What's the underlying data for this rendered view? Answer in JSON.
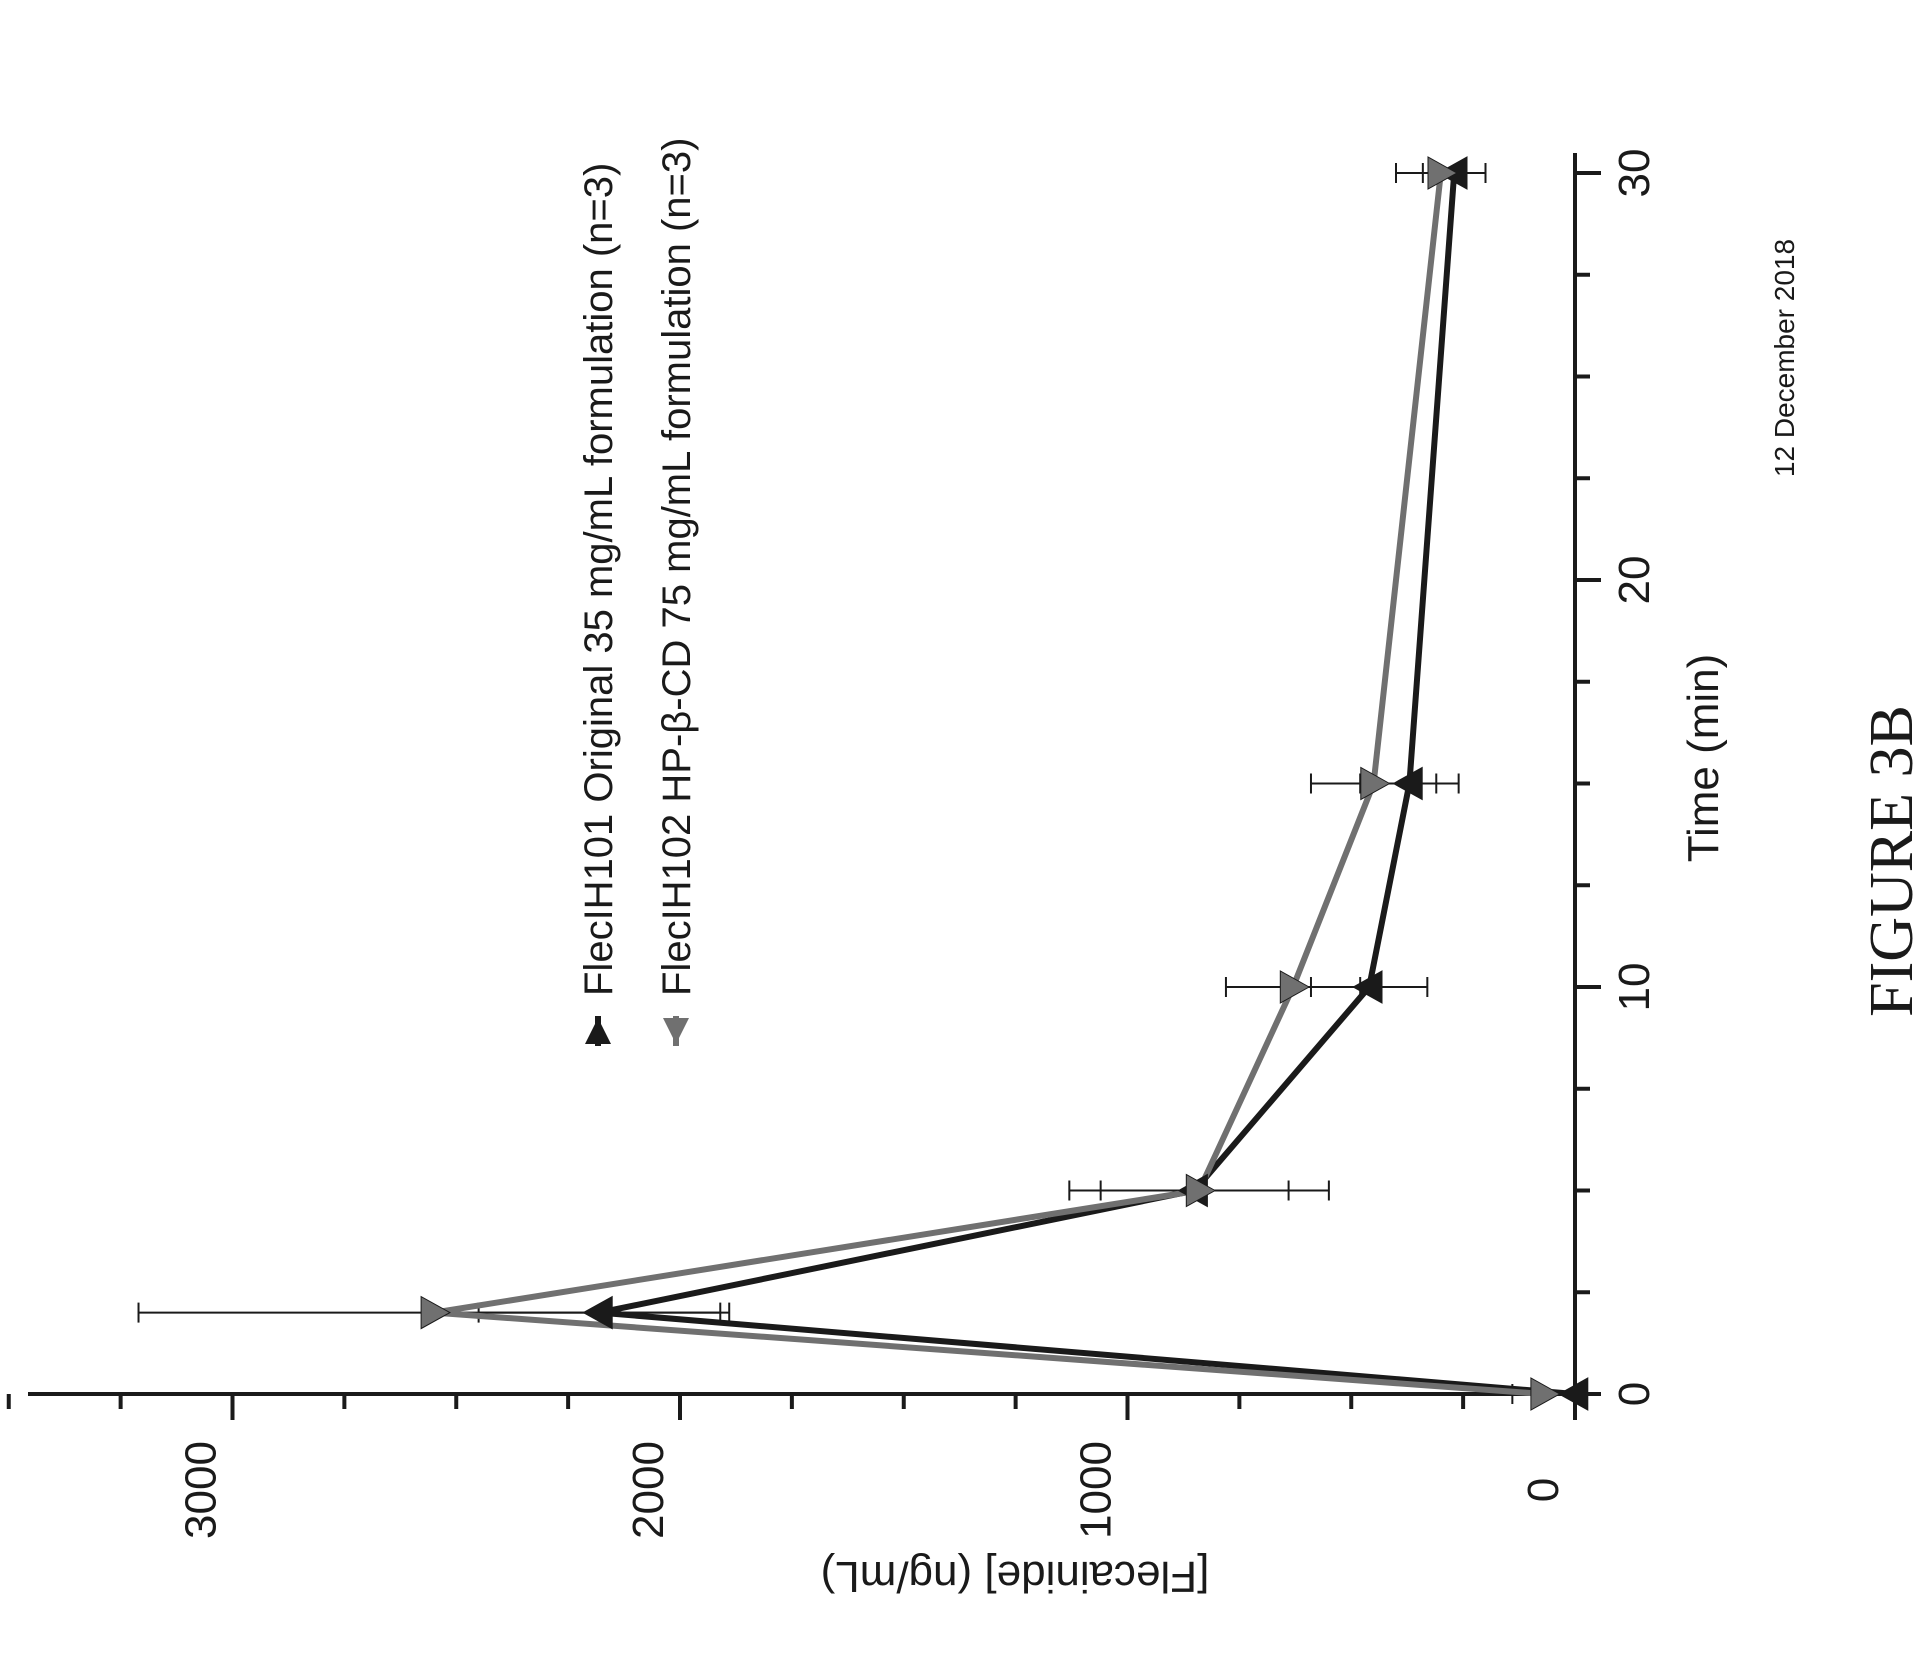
{
  "figure_label": "FIGURE 3B",
  "date_note": "12 December 2018",
  "colors": {
    "series_1": "#1a1a1a",
    "series_2": "#707070",
    "axis": "#1a1a1a"
  },
  "chart_data": {
    "type": "line",
    "orientation": "rotated 90 degrees counter-clockwise",
    "xlabel": "Time (min)",
    "ylabel": "[Flecainide] (ng/mL)",
    "xlim": [
      0,
      31
    ],
    "ylim": [
      0,
      3500
    ],
    "x_ticks": [
      0,
      10,
      20,
      30
    ],
    "y_ticks": [
      0,
      1000,
      2000,
      3000
    ],
    "x_minor_tick_step": 2.5,
    "y_minor_tick_step": 250,
    "grid": false,
    "legend_position": "top",
    "series": [
      {
        "name": "FlecIH101 Original 35 mg/mL formulation (n=3)",
        "marker": "triangle-up",
        "color_key": "series_1",
        "points": [
          {
            "x": 0,
            "y": 0,
            "err": 0
          },
          {
            "x": 2,
            "y": 2180,
            "err": 270
          },
          {
            "x": 5,
            "y": 850,
            "err": 210
          },
          {
            "x": 10,
            "y": 460,
            "err": 130
          },
          {
            "x": 15,
            "y": 370,
            "err": 110
          },
          {
            "x": 30,
            "y": 270,
            "err": 70
          }
        ]
      },
      {
        "name": "FlecIH102 HP-β-CD 75 mg/mL formulation (n=3)",
        "marker": "triangle-down",
        "color_key": "series_2",
        "points": [
          {
            "x": 0,
            "y": 70,
            "err": 70
          },
          {
            "x": 2,
            "y": 2550,
            "err": 660
          },
          {
            "x": 5,
            "y": 840,
            "err": 290
          },
          {
            "x": 10,
            "y": 630,
            "err": 150
          },
          {
            "x": 15,
            "y": 450,
            "err": 140
          },
          {
            "x": 30,
            "y": 300,
            "err": 100
          }
        ]
      }
    ]
  }
}
